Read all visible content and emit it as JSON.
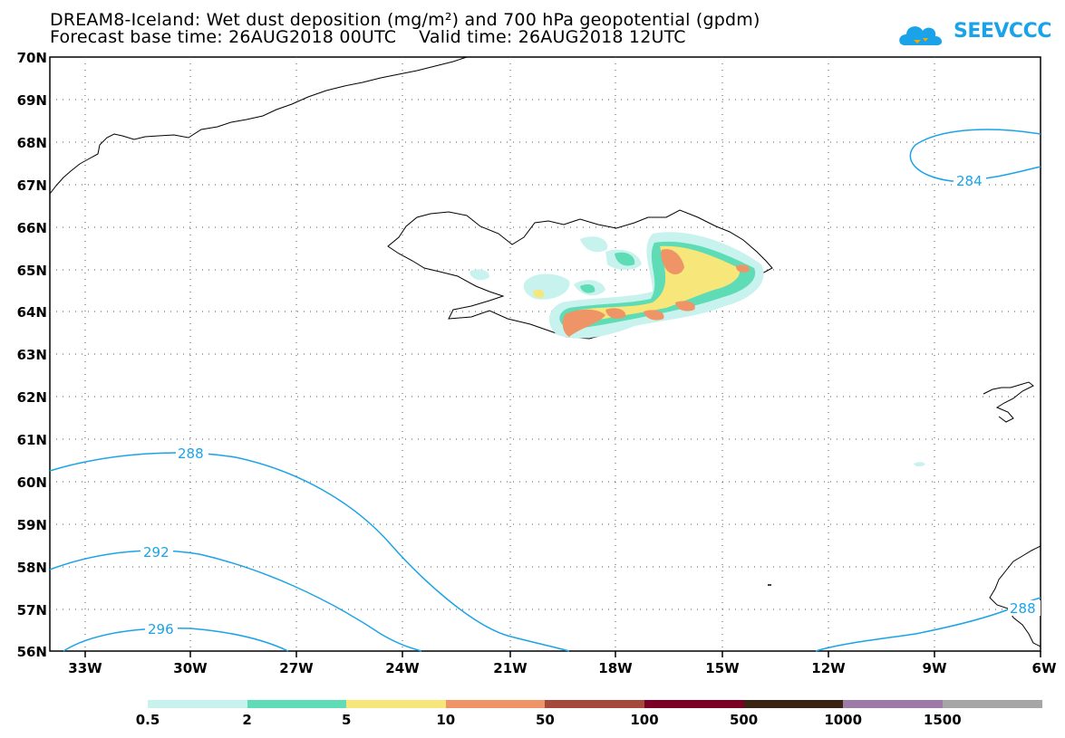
{
  "header": {
    "title_line1": "DREAM8-Iceland: Wet dust deposition (mg/m²) and 700 hPa geopotential (gpdm)",
    "title_line2": "Forecast base time: 26AUG2018 00UTC    Valid time: 26AUG2018 12UTC"
  },
  "logo": {
    "text": "SEEVCCC",
    "color": "#1aa3e8"
  },
  "axes": {
    "lat_labels": [
      "70N",
      "69N",
      "68N",
      "67N",
      "66N",
      "65N",
      "64N",
      "63N",
      "62N",
      "61N",
      "60N",
      "59N",
      "58N",
      "57N",
      "56N"
    ],
    "lon_labels": [
      "33W",
      "30W",
      "27W",
      "24W",
      "21W",
      "18W",
      "15W",
      "12W",
      "9W",
      "6W"
    ]
  },
  "contours": {
    "color": "#1aa3e8",
    "labels": [
      "284",
      "288",
      "292",
      "296",
      "288"
    ]
  },
  "colorbar": {
    "colors": [
      "#c8f2ee",
      "#5ddcb5",
      "#f7e67a",
      "#ee9466",
      "#a34a3c",
      "#7b0026",
      "#3a2414",
      "#9d7aa8",
      "#a6a6a6"
    ],
    "labels": [
      "0.5",
      "2",
      "5",
      "10",
      "50",
      "100",
      "500",
      "1000",
      "1500"
    ]
  }
}
